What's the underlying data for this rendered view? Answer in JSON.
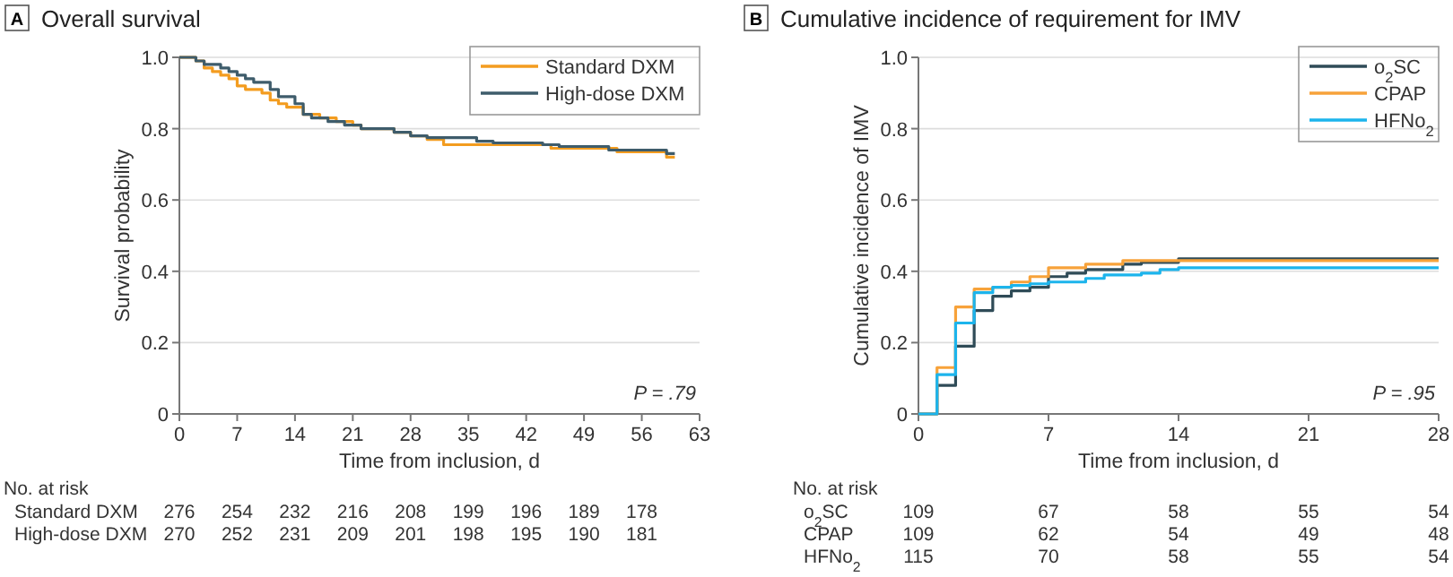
{
  "chart_data": [
    {
      "type": "step",
      "title": "Overall survival",
      "xlabel": "Time from inclusion, d",
      "ylabel": "Survival probability",
      "xlim": [
        0,
        63
      ],
      "xticks": [
        0,
        7,
        14,
        21,
        28,
        35,
        42,
        49,
        56,
        63
      ],
      "ylim": [
        0,
        1
      ],
      "yticks": [
        0,
        {
          "value": 0.2,
          "label": "0.2"
        },
        {
          "value": 0.4,
          "label": "0.4"
        },
        {
          "value": 0.6,
          "label": "0.6"
        },
        {
          "value": 0.8,
          "label": "0.8"
        },
        {
          "value": 1,
          "label": "1.0"
        }
      ],
      "grid": "y",
      "legend": "top right",
      "marker": "none",
      "line_style": "solid",
      "series": [
        {
          "name": "Standard DXM",
          "color": "#f39c1f",
          "x": [
            0,
            2,
            3,
            4,
            5,
            6,
            7,
            8,
            10,
            11,
            12,
            13,
            15,
            17,
            19,
            21,
            22,
            26,
            28,
            30,
            32,
            45,
            53,
            59,
            60
          ],
          "values": [
            1,
            0.99,
            0.97,
            0.96,
            0.95,
            0.94,
            0.92,
            0.91,
            0.9,
            0.88,
            0.87,
            0.86,
            0.84,
            0.83,
            0.82,
            0.81,
            0.8,
            0.79,
            0.78,
            0.77,
            0.755,
            0.745,
            0.735,
            0.72,
            0.72
          ]
        },
        {
          "name": "High-dose DXM",
          "color": "#3e5c6b",
          "x": [
            0,
            2,
            3,
            5,
            6,
            7,
            8,
            9,
            11,
            12,
            14,
            15,
            16,
            18,
            20,
            22,
            26,
            28,
            30,
            36,
            38,
            44,
            46,
            52,
            59,
            60
          ],
          "values": [
            1,
            0.99,
            0.98,
            0.97,
            0.96,
            0.95,
            0.94,
            0.93,
            0.91,
            0.89,
            0.87,
            0.84,
            0.83,
            0.82,
            0.81,
            0.8,
            0.79,
            0.78,
            0.775,
            0.765,
            0.76,
            0.755,
            0.75,
            0.74,
            0.73,
            0.73
          ]
        }
      ],
      "annotations": [
        "A",
        "P = .79",
        "No. at risk",
        "Standard DXM",
        "276",
        "254",
        "232",
        "216",
        "208",
        "199",
        "196",
        "189",
        "178",
        "High-dose DXM",
        "270",
        "252",
        "231",
        "209",
        "201",
        "198",
        "195",
        "190",
        "181"
      ]
    },
    {
      "type": "step",
      "title": "Cumulative incidence of requirement for IMV",
      "xlabel": "Time from inclusion, d",
      "ylabel": "Cumulative incidence of IMV",
      "xlim": [
        0,
        28
      ],
      "xticks": [
        0,
        7,
        14,
        21,
        28
      ],
      "ylim": [
        0,
        1
      ],
      "yticks": [
        0,
        {
          "value": 0.2,
          "label": "0.2"
        },
        {
          "value": 0.4,
          "label": "0.4"
        },
        {
          "value": 0.6,
          "label": "0.6"
        },
        {
          "value": 0.8,
          "label": "0.8"
        },
        {
          "value": 1,
          "label": "1.0"
        }
      ],
      "grid": "y",
      "legend": "top right",
      "marker": "none",
      "line_style": "solid",
      "series": [
        {
          "name": "o$_{2}$SC",
          "color": "#2f4b57",
          "x": [
            0,
            1,
            2,
            3,
            4,
            5,
            6,
            7,
            8,
            9,
            11,
            12,
            14,
            28
          ],
          "values": [
            0,
            0.08,
            0.19,
            0.29,
            0.33,
            0.345,
            0.355,
            0.385,
            0.395,
            0.405,
            0.42,
            0.425,
            0.435,
            0.435
          ]
        },
        {
          "name": "CPAP",
          "color": "#f7a23a",
          "x": [
            0,
            1,
            2,
            3,
            4,
            5,
            6,
            7,
            9,
            11,
            28
          ],
          "values": [
            0,
            0.13,
            0.3,
            0.35,
            0.355,
            0.37,
            0.385,
            0.41,
            0.42,
            0.43,
            0.43
          ]
        },
        {
          "name": "HFNo$_{2}$",
          "color": "#1cb4ec",
          "x": [
            0,
            1,
            2,
            3,
            4,
            5,
            6,
            7,
            9,
            10,
            12,
            13,
            14,
            28
          ],
          "values": [
            0,
            0.11,
            0.255,
            0.34,
            0.355,
            0.36,
            0.365,
            0.37,
            0.38,
            0.39,
            0.395,
            0.405,
            0.41,
            0.41
          ]
        }
      ],
      "annotations": [
        "B",
        "P = .95",
        "No. at risk",
        "o$_{2}$SC",
        "109",
        "67",
        "58",
        "55",
        "54",
        "CPAP",
        "109",
        "62",
        "54",
        "49",
        "48",
        "HFNo$_{2}$",
        "115",
        "70",
        "58",
        "55",
        "54"
      ]
    }
  ]
}
